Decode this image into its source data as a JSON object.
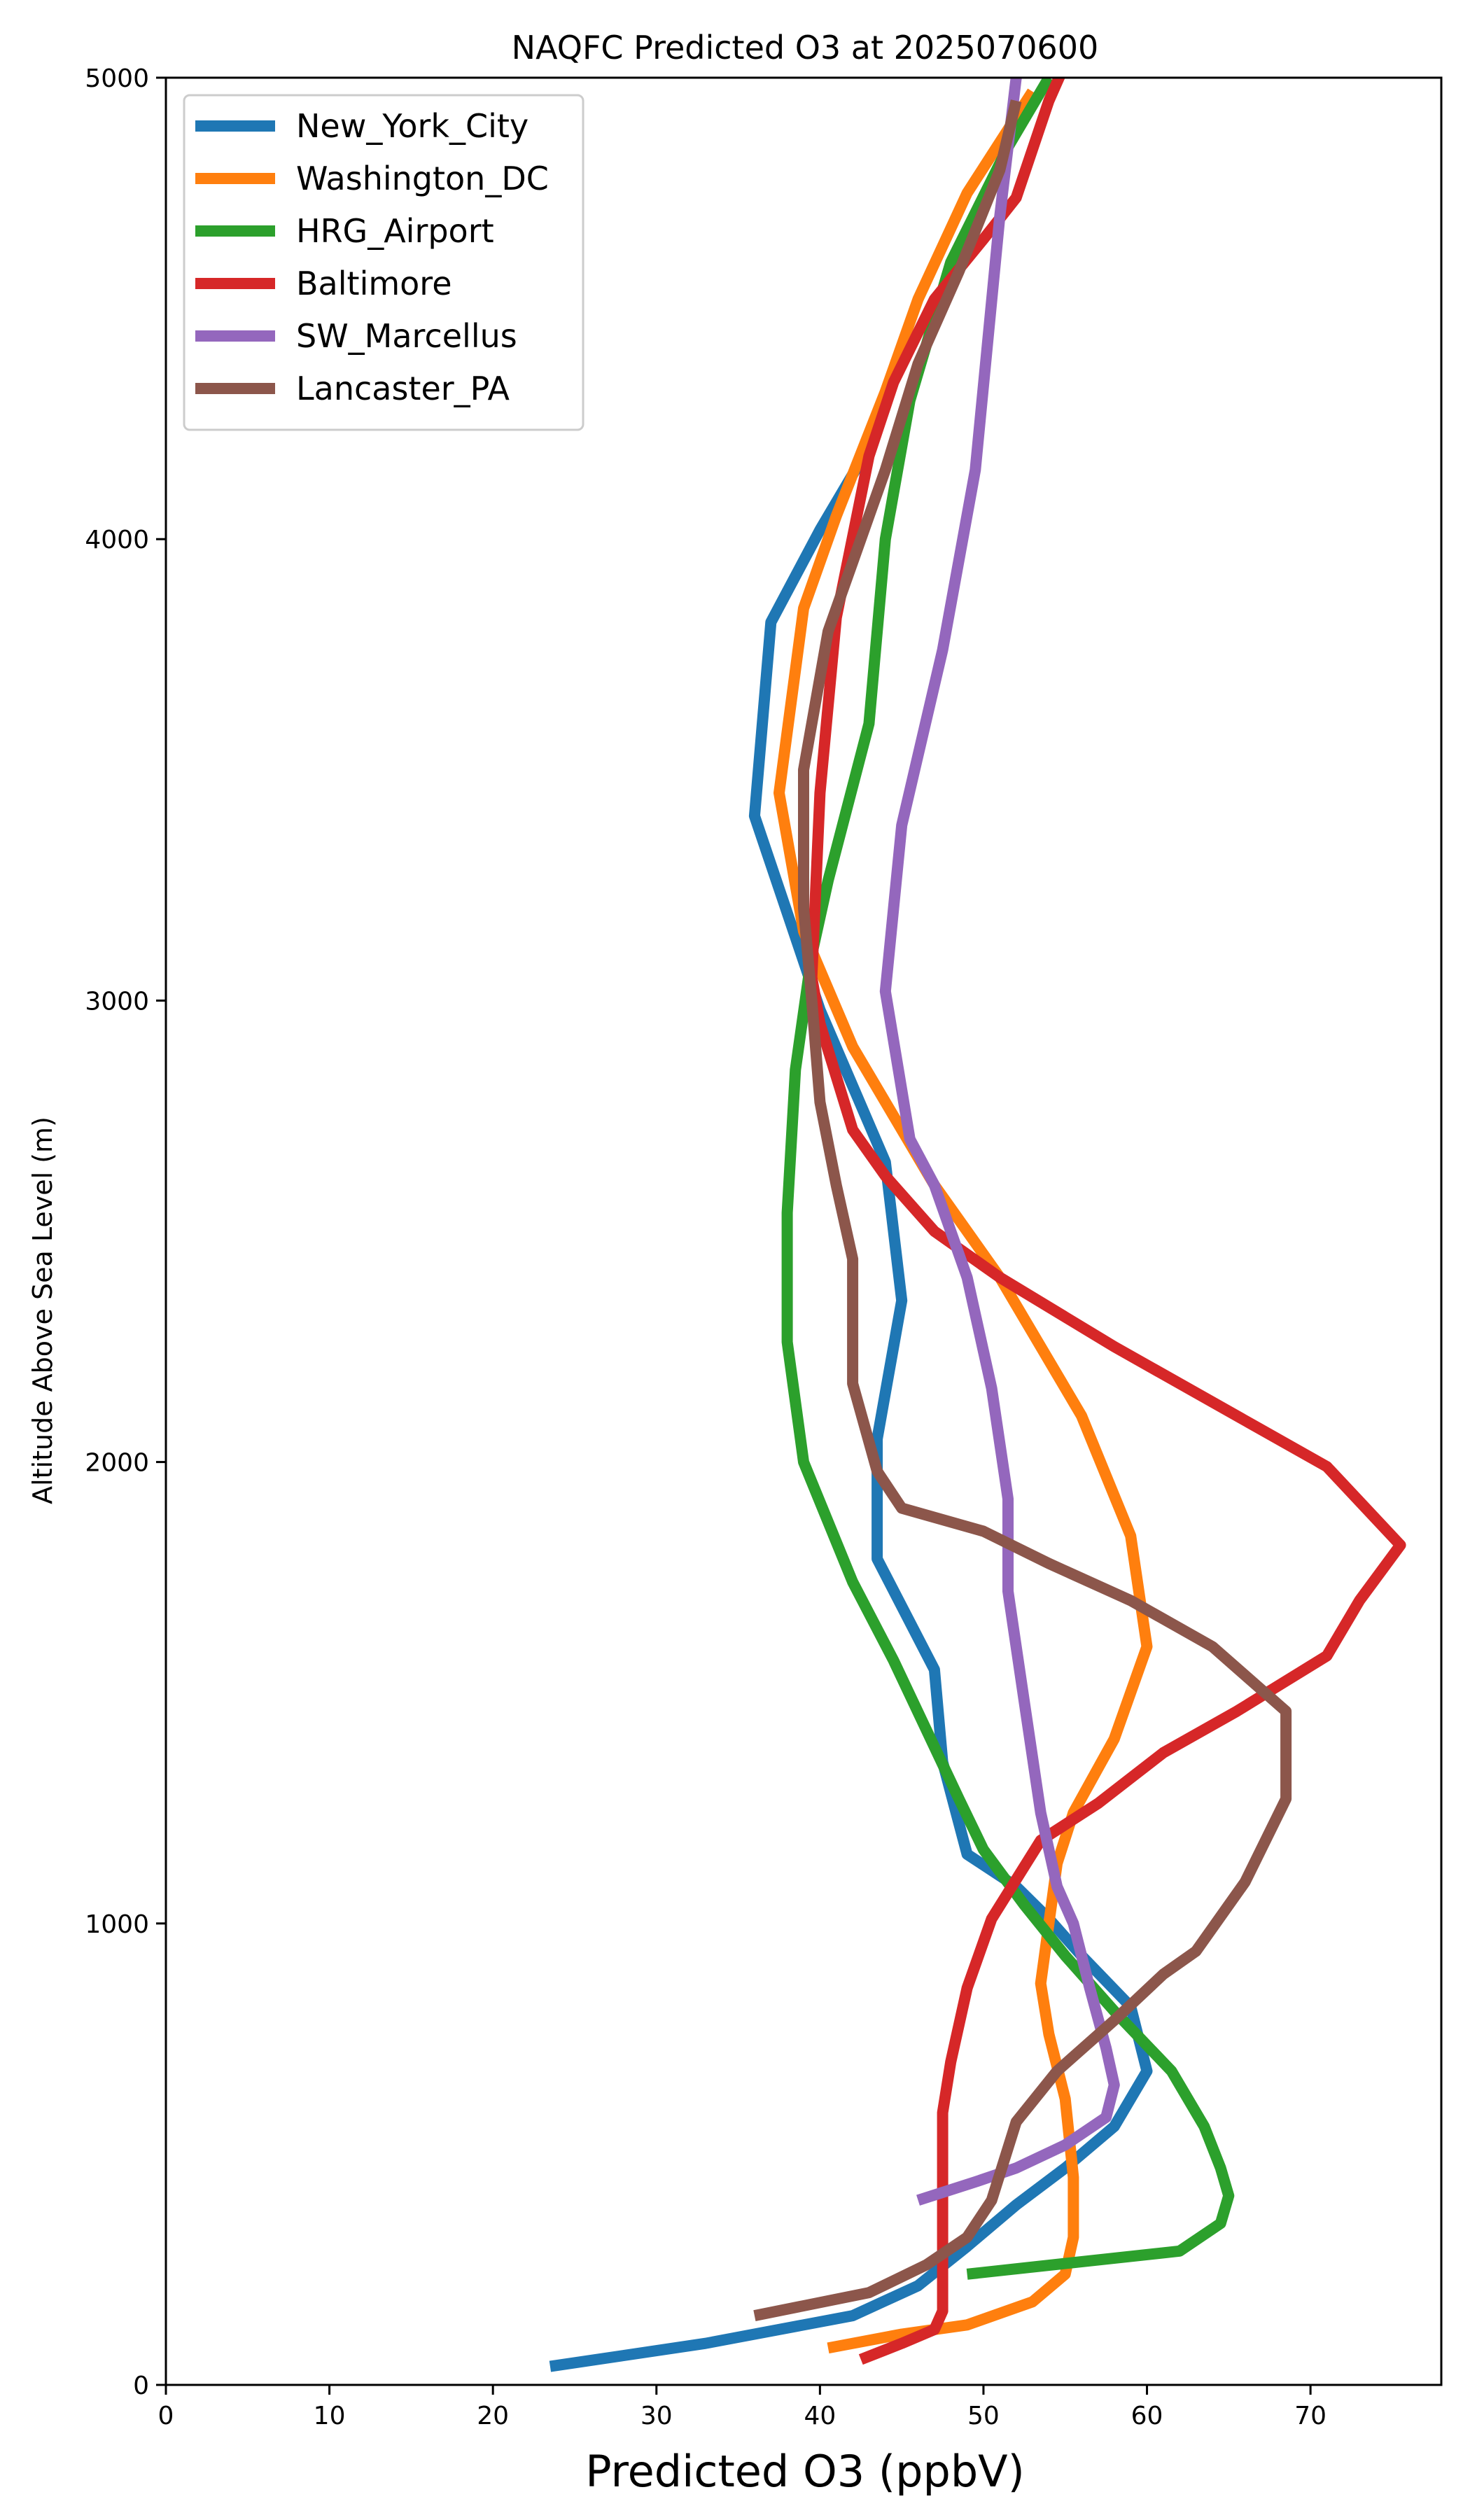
{
  "chart_data": {
    "type": "line",
    "title": "NAQFC Predicted O3 at 2025070600",
    "xlabel": "Predicted O3 (ppbV)",
    "ylabel": "Altitude Above Sea Level (m)",
    "xlim": [
      0,
      78
    ],
    "ylim": [
      0,
      5000
    ],
    "x_ticks": [
      0,
      10,
      20,
      30,
      40,
      50,
      60,
      70
    ],
    "y_ticks": [
      0,
      1000,
      2000,
      3000,
      4000,
      5000
    ],
    "x_tick_labels": [
      "0",
      "10",
      "20",
      "30",
      "40",
      "50",
      "60",
      "70"
    ],
    "y_tick_labels": [
      "0",
      "1000",
      "2000",
      "3000",
      "4000",
      "5000"
    ],
    "grid": false,
    "legend_position": "upper-left",
    "series": [
      {
        "name": "New_York_City",
        "color": "#1f77b4",
        "points": [
          [
            23.5,
            40
          ],
          [
            33,
            90
          ],
          [
            42,
            150
          ],
          [
            46,
            215
          ],
          [
            49,
            300
          ],
          [
            52,
            390
          ],
          [
            55,
            470
          ],
          [
            58,
            560
          ],
          [
            60,
            680
          ],
          [
            59,
            820
          ],
          [
            56,
            930
          ],
          [
            54,
            1010
          ],
          [
            52,
            1080
          ],
          [
            49,
            1150
          ],
          [
            47.5,
            1350
          ],
          [
            47,
            1550
          ],
          [
            43.5,
            1790
          ],
          [
            43.5,
            2050
          ],
          [
            45,
            2350
          ],
          [
            44,
            2650
          ],
          [
            40,
            2980
          ],
          [
            36,
            3400
          ],
          [
            37,
            3820
          ],
          [
            40,
            4020
          ],
          [
            43,
            4200
          ]
        ]
      },
      {
        "name": "Washington_DC",
        "color": "#ff7f0e",
        "points": [
          [
            40.5,
            80
          ],
          [
            45,
            110
          ],
          [
            49,
            130
          ],
          [
            53,
            180
          ],
          [
            55,
            240
          ],
          [
            55.5,
            320
          ],
          [
            55.5,
            450
          ],
          [
            55,
            620
          ],
          [
            54,
            760
          ],
          [
            53.5,
            870
          ],
          [
            54,
            1000
          ],
          [
            54.5,
            1130
          ],
          [
            55.5,
            1240
          ],
          [
            58,
            1400
          ],
          [
            60,
            1600
          ],
          [
            59,
            1840
          ],
          [
            56,
            2100
          ],
          [
            51,
            2400
          ],
          [
            47,
            2600
          ],
          [
            42,
            2900
          ],
          [
            39,
            3150
          ],
          [
            37.5,
            3450
          ],
          [
            39,
            3850
          ],
          [
            41,
            4050
          ],
          [
            44,
            4320
          ],
          [
            46,
            4520
          ],
          [
            49,
            4750
          ],
          [
            53,
            4970
          ]
        ]
      },
      {
        "name": "HRG_Airport",
        "color": "#2ca02c",
        "points": [
          [
            49,
            240
          ],
          [
            62,
            290
          ],
          [
            64.5,
            350
          ],
          [
            65,
            410
          ],
          [
            64.5,
            470
          ],
          [
            63.5,
            560
          ],
          [
            61.5,
            680
          ],
          [
            58,
            810
          ],
          [
            55,
            930
          ],
          [
            52.5,
            1040
          ],
          [
            50,
            1160
          ],
          [
            48.5,
            1270
          ],
          [
            46.5,
            1420
          ],
          [
            44.5,
            1570
          ],
          [
            42,
            1740
          ],
          [
            39,
            2000
          ],
          [
            38,
            2260
          ],
          [
            38,
            2540
          ],
          [
            38.5,
            2850
          ],
          [
            39.5,
            3100
          ],
          [
            40.5,
            3260
          ],
          [
            43,
            3600
          ],
          [
            44,
            4000
          ],
          [
            45.5,
            4300
          ],
          [
            48,
            4600
          ],
          [
            51.5,
            4850
          ],
          [
            54,
            5000
          ]
        ]
      },
      {
        "name": "Baltimore",
        "color": "#d62728",
        "points": [
          [
            42.5,
            55
          ],
          [
            45,
            90
          ],
          [
            47,
            120
          ],
          [
            47.5,
            160
          ],
          [
            47.5,
            250
          ],
          [
            47.5,
            360
          ],
          [
            47.5,
            490
          ],
          [
            47.5,
            590
          ],
          [
            48,
            700
          ],
          [
            49,
            860
          ],
          [
            50.5,
            1010
          ],
          [
            53.5,
            1180
          ],
          [
            57,
            1260
          ],
          [
            61,
            1370
          ],
          [
            65.5,
            1460
          ],
          [
            71,
            1580
          ],
          [
            73,
            1700
          ],
          [
            75.5,
            1820
          ],
          [
            71,
            1990
          ],
          [
            66,
            2090
          ],
          [
            58,
            2250
          ],
          [
            51,
            2400
          ],
          [
            47,
            2500
          ],
          [
            44,
            2620
          ],
          [
            42,
            2720
          ],
          [
            40,
            2950
          ],
          [
            39.5,
            3050
          ],
          [
            40,
            3450
          ],
          [
            41,
            3830
          ],
          [
            43,
            4180
          ],
          [
            44.5,
            4340
          ],
          [
            47,
            4520
          ],
          [
            50,
            4650
          ],
          [
            52,
            4740
          ],
          [
            54,
            4950
          ],
          [
            55,
            5030
          ]
        ]
      },
      {
        "name": "SW_Marcellus",
        "color": "#9467bd",
        "points": [
          [
            46,
            400
          ],
          [
            49.5,
            440
          ],
          [
            52,
            470
          ],
          [
            55,
            520
          ],
          [
            57.5,
            580
          ],
          [
            58,
            650
          ],
          [
            57.5,
            730
          ],
          [
            56.5,
            860
          ],
          [
            55.5,
            1000
          ],
          [
            54.5,
            1080
          ],
          [
            53.5,
            1240
          ],
          [
            52.5,
            1480
          ],
          [
            51.5,
            1720
          ],
          [
            51.5,
            1920
          ],
          [
            50.5,
            2160
          ],
          [
            49,
            2400
          ],
          [
            47,
            2600
          ],
          [
            45.5,
            2700
          ],
          [
            44,
            3020
          ],
          [
            45,
            3380
          ],
          [
            47.5,
            3760
          ],
          [
            49.5,
            4150
          ],
          [
            51,
            4700
          ],
          [
            52,
            5000
          ]
        ]
      },
      {
        "name": "Lancaster_PA",
        "color": "#8c564b",
        "points": [
          [
            36,
            150
          ],
          [
            43,
            200
          ],
          [
            46.5,
            260
          ],
          [
            49,
            320
          ],
          [
            50.5,
            400
          ],
          [
            52,
            570
          ],
          [
            54.5,
            680
          ],
          [
            58,
            790
          ],
          [
            61,
            890
          ],
          [
            63,
            940
          ],
          [
            66,
            1090
          ],
          [
            68.5,
            1270
          ],
          [
            68.5,
            1460
          ],
          [
            64,
            1600
          ],
          [
            59,
            1700
          ],
          [
            54,
            1780
          ],
          [
            50,
            1850
          ],
          [
            45,
            1900
          ],
          [
            43.5,
            1980
          ],
          [
            42,
            2170
          ],
          [
            42,
            2440
          ],
          [
            41,
            2600
          ],
          [
            40,
            2780
          ],
          [
            39.5,
            3000
          ],
          [
            39,
            3200
          ],
          [
            39,
            3500
          ],
          [
            40.5,
            3800
          ],
          [
            42,
            3950
          ],
          [
            44,
            4150
          ],
          [
            46,
            4380
          ],
          [
            48.5,
            4580
          ],
          [
            51,
            4800
          ],
          [
            52,
            4950
          ]
        ]
      }
    ]
  }
}
